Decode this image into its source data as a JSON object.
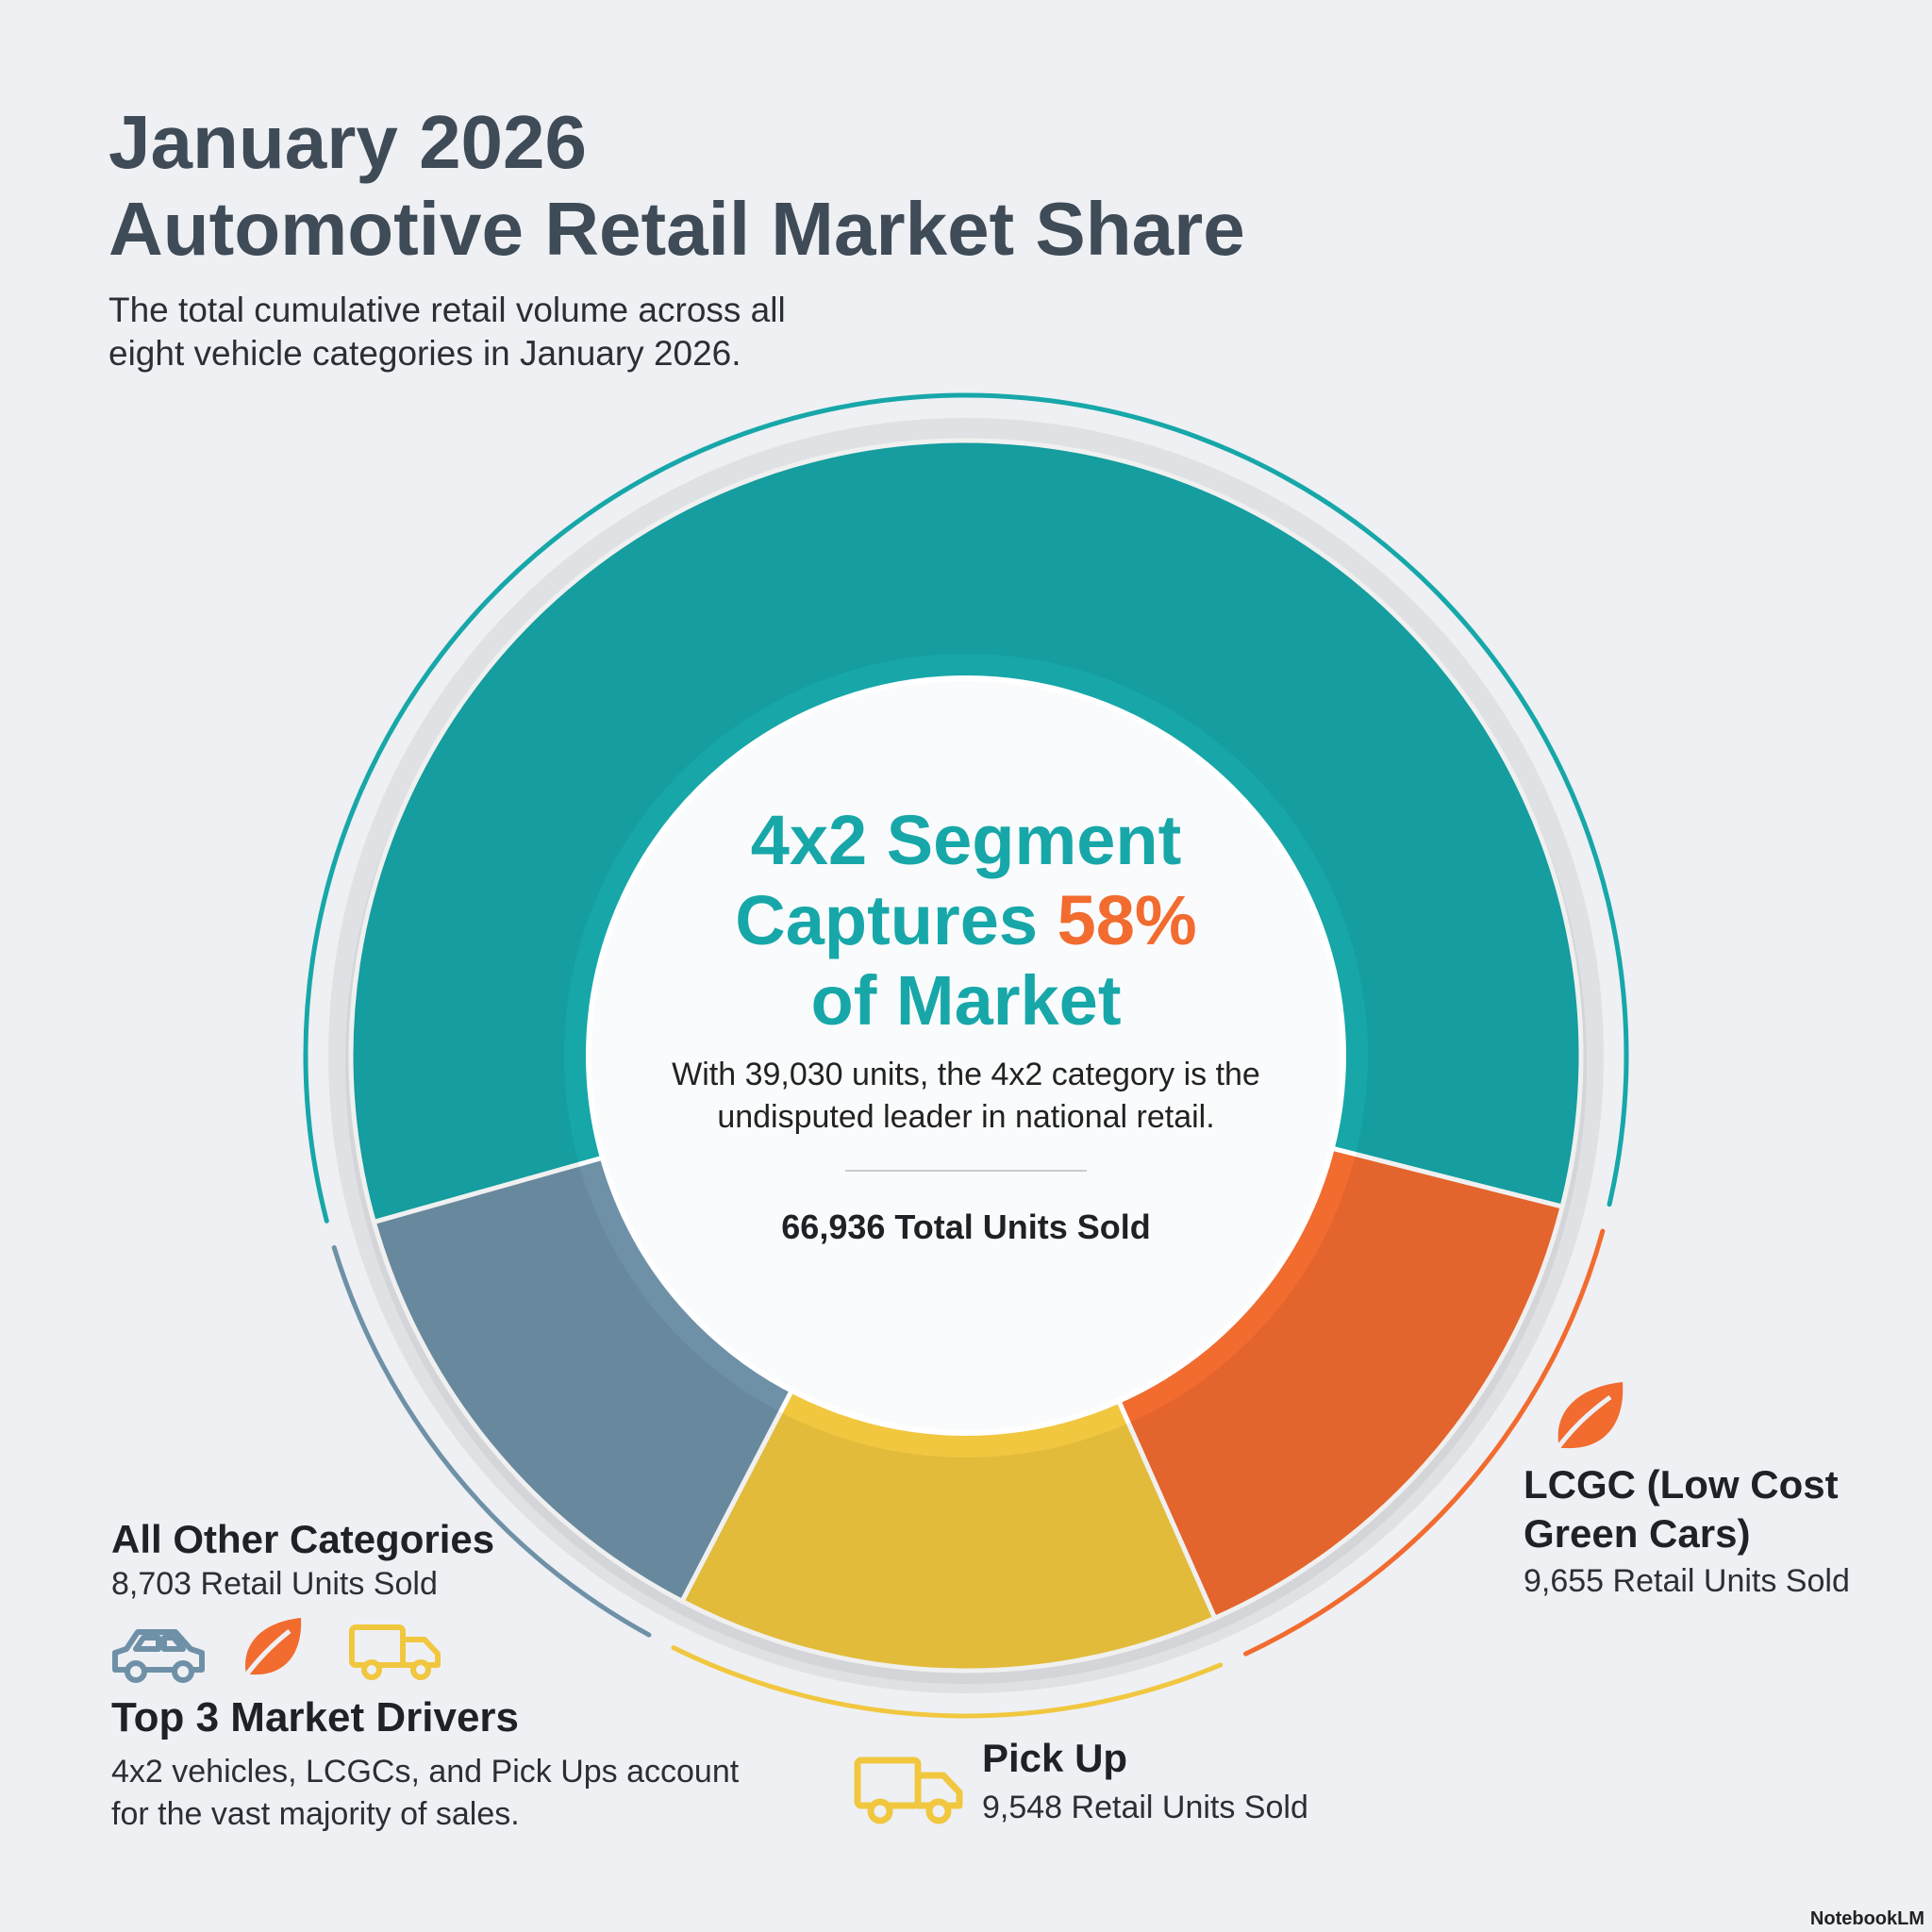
{
  "chart_data": {
    "type": "donut",
    "title": "January 2026\nAutomotive Retail Market Share",
    "subtitle": "The total cumulative retail volume across all eight vehicle categories in January 2026.",
    "categories": [
      null,
      "LCGC (Low Cost Green Cars)",
      "Pick Up",
      "All Other Categories"
    ],
    "values": [
      39030,
      9655,
      9548,
      8703
    ],
    "value_labels": [
      null,
      "9,655 Retail Units Sold",
      "9,548 Retail Units Sold",
      "8,703 Retail Units Sold"
    ],
    "colors": [
      "#17a7a9",
      "#f26b2f",
      "#f1c73f",
      "#6f91a7"
    ],
    "headline": {
      "before": "4x2 Segment Captures ",
      "highlight": "58%",
      "after": " of Market"
    },
    "center_text": "With 39,030 units, the 4x2 category is the undisputed leader in national retail.",
    "total_label": "66,936 Total Units Sold",
    "drivers_title": "Top 3 Market Drivers",
    "drivers_text": "4x2 vehicles, LCGCs, and Pick Ups account for the vast majority of sales.",
    "footer": "NotebookLM"
  }
}
